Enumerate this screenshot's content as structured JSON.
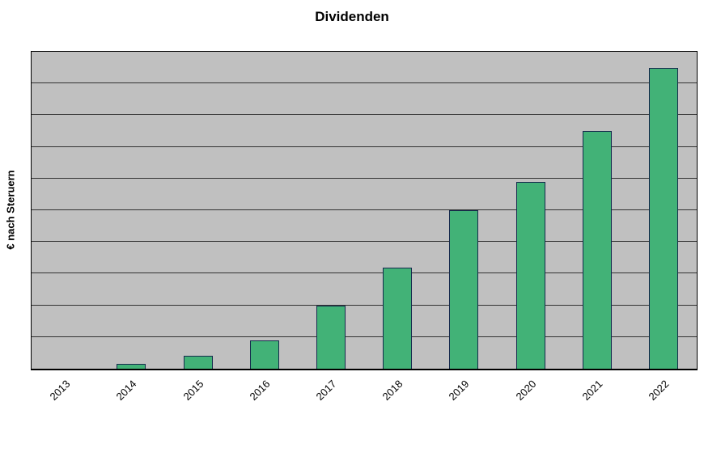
{
  "chart": {
    "title": "Dividenden",
    "ylabel": "€ nach Steruern"
  },
  "chart_data": {
    "type": "bar",
    "title": "Dividenden",
    "xlabel": "",
    "ylabel": "€ nach Steruern",
    "categories": [
      "2013",
      "2014",
      "2015",
      "2016",
      "2017",
      "2018",
      "2019",
      "2020",
      "2021",
      "2022"
    ],
    "values": [
      0,
      1.5,
      4,
      9,
      20,
      32,
      50,
      59,
      75,
      95
    ],
    "ylim": [
      0,
      100
    ],
    "gridline_step": 10,
    "grid": true,
    "legend": false,
    "y_tick_labels_visible": false,
    "colors": {
      "bar_fill": "#42b277",
      "bar_border": "#152a4d",
      "plot_bg": "#c0c0c0",
      "gridline": "#333333",
      "axis": "#000000",
      "chart_bg": "#ffffff"
    }
  }
}
